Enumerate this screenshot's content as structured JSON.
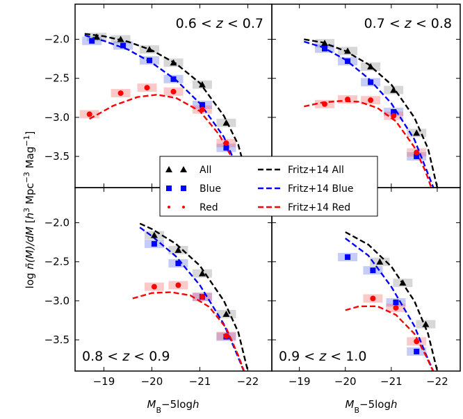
{
  "chart_data": {
    "type": "scatter",
    "xlabel": "M_B − 5log h",
    "xlabel_parts": {
      "main": "M",
      "sub": "B",
      "rest": "−5log",
      "italic_tail": "h"
    },
    "ylabel": "log n̄(M)/dM [h³ Mpc⁻³ Mag⁻¹]",
    "xlim": [
      -18.4,
      -22.5
    ],
    "ylim": [
      -3.9,
      -1.55
    ],
    "x_ticks": [
      -19,
      -20,
      -21,
      -22
    ],
    "x_tick_labels": [
      "−19",
      "−20",
      "−21",
      "−22"
    ],
    "y_ticks": [
      -2.0,
      -2.5,
      -3.0,
      -3.5
    ],
    "y_tick_labels": [
      "−2.0",
      "−2.5",
      "−3.0",
      "−3.5"
    ],
    "legend": [
      {
        "label": "All",
        "marker": "triangle",
        "color": "#000000"
      },
      {
        "label": "Blue",
        "marker": "square",
        "color": "#0000ff"
      },
      {
        "label": "Red",
        "marker": "circle",
        "color": "#ff0000"
      },
      {
        "label": "Fritz+14 All",
        "line": "dashed",
        "color": "#000000"
      },
      {
        "label": "Fritz+14 Blue",
        "line": "dashed",
        "color": "#0000ff"
      },
      {
        "label": "Fritz+14 Red",
        "line": "dashed",
        "color": "#ff0000"
      }
    ],
    "panels": [
      {
        "label": "0.6 < z < 0.7",
        "label_parts": [
          "0.6",
          "z",
          "0.7"
        ],
        "label_position": "top-right",
        "all": {
          "x": [
            -18.85,
            -19.35,
            -19.95,
            -20.45,
            -21.05,
            -21.55
          ],
          "y": [
            -1.97,
            -2.0,
            -2.13,
            -2.3,
            -2.58,
            -3.07
          ]
        },
        "blue": {
          "x": [
            -18.75,
            -19.4,
            -19.95,
            -20.45,
            -21.05,
            -21.55
          ],
          "y": [
            -2.02,
            -2.08,
            -2.27,
            -2.51,
            -2.84,
            -3.39
          ]
        },
        "red": {
          "x": [
            -18.7,
            -19.35,
            -19.9,
            -20.45,
            -21.05,
            -21.55
          ],
          "y": [
            -2.96,
            -2.69,
            -2.62,
            -2.67,
            -2.9,
            -3.33
          ]
        },
        "fritz_all": {
          "x": [
            -18.6,
            -19,
            -19.5,
            -20,
            -20.5,
            -21,
            -21.5,
            -21.8,
            -22.0
          ],
          "y": [
            -1.93,
            -1.96,
            -2.03,
            -2.14,
            -2.31,
            -2.56,
            -2.98,
            -3.35,
            -3.8
          ]
        },
        "fritz_blue": {
          "x": [
            -18.6,
            -19,
            -19.5,
            -20,
            -20.5,
            -21,
            -21.5,
            -21.75,
            -21.95
          ],
          "y": [
            -1.95,
            -2.02,
            -2.13,
            -2.3,
            -2.52,
            -2.82,
            -3.25,
            -3.6,
            -3.9
          ]
        },
        "fritz_red": {
          "x": [
            -18.7,
            -19.2,
            -19.7,
            -20.1,
            -20.5,
            -21.0,
            -21.4,
            -21.7,
            -21.9
          ],
          "y": [
            -3.02,
            -2.85,
            -2.74,
            -2.71,
            -2.75,
            -2.92,
            -3.22,
            -3.55,
            -3.9
          ]
        }
      },
      {
        "label": "0.7 < z < 0.8",
        "label_parts": [
          "0.7",
          "z",
          "0.8"
        ],
        "label_position": "top-right",
        "all": {
          "x": [
            -19.55,
            -20.05,
            -20.55,
            -21.05,
            -21.55
          ],
          "y": [
            -2.05,
            -2.15,
            -2.35,
            -2.65,
            -3.2
          ]
        },
        "blue": {
          "x": [
            -19.55,
            -20.05,
            -20.55,
            -21.05,
            -21.55
          ],
          "y": [
            -2.12,
            -2.28,
            -2.55,
            -2.93,
            -3.5
          ]
        },
        "red": {
          "x": [
            -19.55,
            -20.05,
            -20.55,
            -21.05,
            -21.55
          ],
          "y": [
            -2.83,
            -2.77,
            -2.78,
            -2.98,
            -3.45
          ]
        },
        "fritz_all": {
          "x": [
            -19.1,
            -19.5,
            -20,
            -20.5,
            -21,
            -21.5,
            -21.8,
            -22.0
          ],
          "y": [
            -2.0,
            -2.04,
            -2.15,
            -2.32,
            -2.58,
            -3.0,
            -3.4,
            -3.9
          ]
        },
        "fritz_blue": {
          "x": [
            -19.1,
            -19.5,
            -20,
            -20.5,
            -21,
            -21.5,
            -21.75,
            -21.95
          ],
          "y": [
            -2.03,
            -2.1,
            -2.26,
            -2.5,
            -2.82,
            -3.28,
            -3.65,
            -3.95
          ]
        },
        "fritz_red": {
          "x": [
            -19.1,
            -19.5,
            -19.9,
            -20.3,
            -20.7,
            -21.1,
            -21.5,
            -21.75,
            -21.9
          ],
          "y": [
            -2.86,
            -2.81,
            -2.79,
            -2.8,
            -2.88,
            -3.05,
            -3.38,
            -3.7,
            -3.95
          ]
        }
      },
      {
        "label": "0.8 < z < 0.9",
        "label_parts": [
          "0.8",
          "z",
          "0.9"
        ],
        "label_position": "bottom-left",
        "all": {
          "x": [
            -20.05,
            -20.55,
            -21.05,
            -21.55
          ],
          "y": [
            -2.16,
            -2.35,
            -2.65,
            -3.17
          ]
        },
        "blue": {
          "x": [
            -20.05,
            -20.55,
            -21.05,
            -21.55
          ],
          "y": [
            -2.27,
            -2.52,
            -2.95,
            -3.46
          ]
        },
        "red": {
          "x": [
            -20.05,
            -20.55,
            -21.05,
            -21.55
          ],
          "y": [
            -2.82,
            -2.8,
            -2.95,
            -3.45
          ]
        },
        "fritz_all": {
          "x": [
            -19.75,
            -20,
            -20.5,
            -21,
            -21.5,
            -21.8,
            -22.0
          ],
          "y": [
            -2.01,
            -2.08,
            -2.27,
            -2.55,
            -3.0,
            -3.4,
            -3.9
          ]
        },
        "fritz_blue": {
          "x": [
            -19.75,
            -20,
            -20.5,
            -21,
            -21.5,
            -21.75,
            -21.95
          ],
          "y": [
            -2.06,
            -2.17,
            -2.43,
            -2.8,
            -3.3,
            -3.65,
            -3.95
          ]
        },
        "fritz_red": {
          "x": [
            -19.6,
            -20,
            -20.4,
            -20.8,
            -21.2,
            -21.55,
            -21.8,
            -21.95
          ],
          "y": [
            -2.97,
            -2.9,
            -2.89,
            -2.93,
            -3.08,
            -3.35,
            -3.7,
            -3.95
          ]
        }
      },
      {
        "label": "0.9 < z < 1.0",
        "label_parts": [
          "0.9",
          "z",
          "1.0"
        ],
        "label_position": "bottom-left",
        "all": {
          "x": [
            -20.75,
            -21.25,
            -21.75
          ],
          "y": [
            -2.5,
            -2.77,
            -3.3
          ]
        },
        "blue": {
          "x": [
            -20.05,
            -20.6,
            -21.1,
            -21.55
          ],
          "y": [
            -2.44,
            -2.61,
            -3.02,
            -3.65
          ]
        },
        "red": {
          "x": [
            -20.6,
            -21.1,
            -21.55
          ],
          "y": [
            -2.97,
            -3.09,
            -3.52
          ]
        },
        "fritz_all": {
          "x": [
            -20.0,
            -20.5,
            -21,
            -21.5,
            -21.8,
            -22.0
          ],
          "y": [
            -2.12,
            -2.28,
            -2.56,
            -3.0,
            -3.42,
            -3.9
          ]
        },
        "fritz_blue": {
          "x": [
            -20.0,
            -20.5,
            -21,
            -21.5,
            -21.75,
            -21.95
          ],
          "y": [
            -2.2,
            -2.42,
            -2.82,
            -3.32,
            -3.68,
            -3.95
          ]
        },
        "fritz_red": {
          "x": [
            -20.0,
            -20.3,
            -20.7,
            -21.1,
            -21.5,
            -21.75,
            -21.95
          ],
          "y": [
            -3.12,
            -3.07,
            -3.07,
            -3.18,
            -3.42,
            -3.7,
            -3.95
          ]
        }
      }
    ]
  }
}
